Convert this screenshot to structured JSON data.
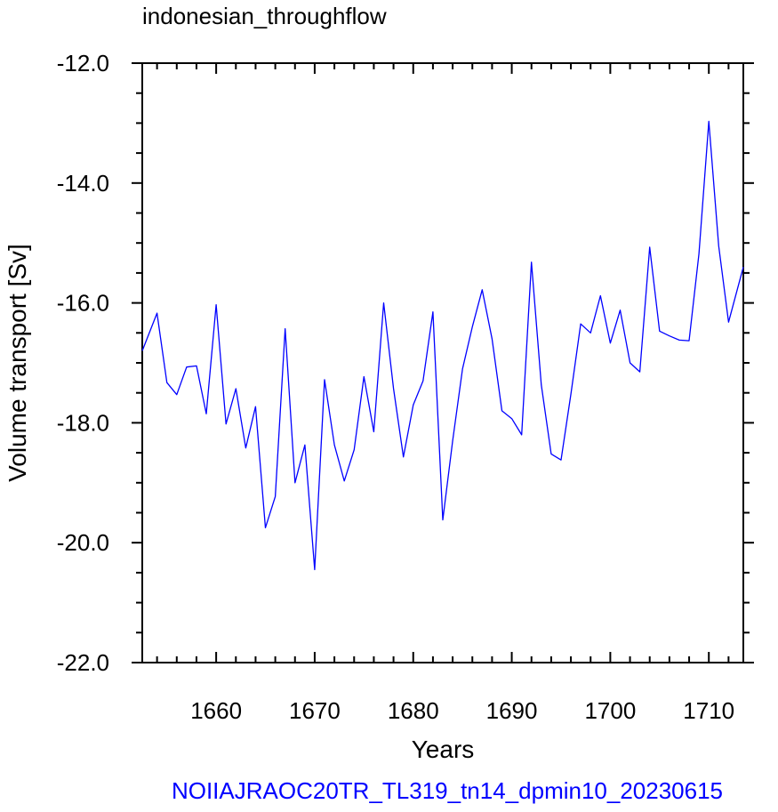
{
  "chart_data": {
    "type": "line",
    "title": "indonesian_throughflow",
    "xlabel": "Years",
    "ylabel": "Volume transport [Sv]",
    "footer": "NOIIAJRAOC20TR_TL319_tn14_dpmin10_20230615",
    "xlim": [
      1652.5,
      1713.5
    ],
    "ylim": [
      -22.0,
      -12.0
    ],
    "x_ticks": [
      1660,
      1670,
      1680,
      1690,
      1700,
      1710
    ],
    "x_tick_labels": [
      "1660",
      "1670",
      "1680",
      "1690",
      "1700",
      "1710"
    ],
    "y_ticks": [
      -12.0,
      -14.0,
      -16.0,
      -18.0,
      -20.0,
      -22.0
    ],
    "y_tick_labels": [
      "-12.0",
      "-14.0",
      "-16.0",
      "-18.0",
      "-20.0",
      "-22.0"
    ],
    "x_minor_step": 2,
    "y_minor_step": 0.5,
    "grid": false,
    "series": [
      {
        "color": "#0000ff",
        "x": [
          1652.5,
          1654,
          1655,
          1656,
          1657,
          1658,
          1659,
          1660,
          1661,
          1662,
          1663,
          1664,
          1665,
          1666,
          1667,
          1668,
          1669,
          1670,
          1671,
          1672,
          1673,
          1674,
          1675,
          1676,
          1677,
          1678,
          1679,
          1680,
          1681,
          1682,
          1683,
          1684,
          1685,
          1686,
          1687,
          1688,
          1689,
          1690,
          1691,
          1692,
          1693,
          1694,
          1695,
          1696,
          1697,
          1698,
          1699,
          1700,
          1701,
          1702,
          1703,
          1704,
          1705,
          1706,
          1707,
          1708,
          1709,
          1710,
          1711,
          1712,
          1713.5
        ],
        "values": [
          -16.8,
          -16.17,
          -17.33,
          -17.53,
          -17.07,
          -17.05,
          -17.85,
          -16.03,
          -18.02,
          -17.43,
          -18.42,
          -17.73,
          -19.75,
          -19.23,
          -16.43,
          -19.0,
          -18.37,
          -20.45,
          -17.28,
          -18.37,
          -18.97,
          -18.45,
          -17.23,
          -18.15,
          -16.0,
          -17.43,
          -18.57,
          -17.7,
          -17.3,
          -16.15,
          -19.62,
          -18.3,
          -17.1,
          -16.4,
          -15.78,
          -16.6,
          -17.8,
          -17.93,
          -18.2,
          -15.32,
          -17.37,
          -18.52,
          -18.62,
          -17.52,
          -16.35,
          -16.5,
          -15.88,
          -16.67,
          -16.12,
          -17.0,
          -17.15,
          -15.07,
          -16.47,
          -16.55,
          -16.62,
          -16.63,
          -15.18,
          -12.97,
          -15.05,
          -16.32,
          -15.4
        ]
      }
    ]
  }
}
